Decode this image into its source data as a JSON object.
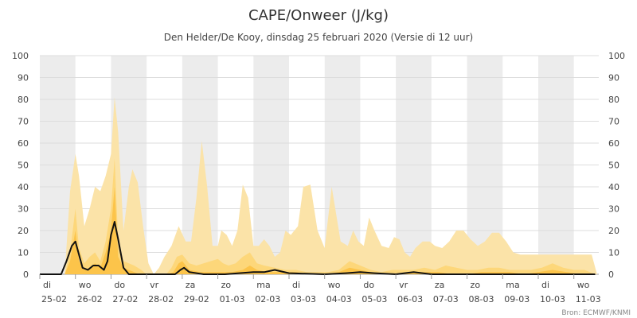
{
  "chart_data": {
    "type": "area",
    "title": "CAPE/Onweer (J/kg)",
    "subtitle": "Den Helder/De Kooy, dinsdag 25 februari 2020 (Versie di 12 uur)",
    "credit": "Bron: ECMWF/KNMI",
    "ylim": [
      0,
      100
    ],
    "yticks": [
      0,
      10,
      20,
      30,
      40,
      50,
      60,
      70,
      80,
      90,
      100
    ],
    "xlim": [
      0,
      15.7
    ],
    "grid": true,
    "x_labels": [
      {
        "day": "di",
        "date": "25-02"
      },
      {
        "day": "wo",
        "date": "26-02"
      },
      {
        "day": "do",
        "date": "27-02"
      },
      {
        "day": "vr",
        "date": "28-02"
      },
      {
        "day": "za",
        "date": "29-02"
      },
      {
        "day": "zo",
        "date": "01-03"
      },
      {
        "day": "ma",
        "date": "02-03"
      },
      {
        "day": "di",
        "date": "03-03"
      },
      {
        "day": "wo",
        "date": "04-03"
      },
      {
        "day": "do",
        "date": "05-03"
      },
      {
        "day": "vr",
        "date": "06-03"
      },
      {
        "day": "za",
        "date": "07-03"
      },
      {
        "day": "zo",
        "date": "08-03"
      },
      {
        "day": "ma",
        "date": "09-03"
      },
      {
        "day": "di",
        "date": "10-03"
      },
      {
        "day": "wo",
        "date": "11-03"
      }
    ],
    "colors": {
      "band_outer": "#fbe3a8",
      "band_mid": "#fdd77a",
      "band_inner": "#fcc44a",
      "line": "#111111",
      "alt_band": "#ececec"
    },
    "series": [
      {
        "role": "band_outer",
        "x": [
          0.7,
          0.85,
          1.0,
          1.1,
          1.25,
          1.4,
          1.55,
          1.7,
          1.85,
          2.0,
          2.1,
          2.2,
          2.35,
          2.5,
          2.6,
          2.75,
          2.9,
          3.05,
          3.2,
          3.35,
          3.5,
          3.7,
          3.9,
          4.1,
          4.25,
          4.4,
          4.55,
          4.7,
          4.85,
          5.0,
          5.1,
          5.25,
          5.4,
          5.55,
          5.7,
          5.85,
          6.0,
          6.15,
          6.3,
          6.45,
          6.6,
          6.75,
          6.9,
          7.05,
          7.25,
          7.4,
          7.6,
          7.8,
          8.0,
          8.2,
          8.45,
          8.65,
          8.8,
          8.95,
          9.1,
          9.25,
          9.4,
          9.6,
          9.8,
          9.95,
          10.1,
          10.25,
          10.4,
          10.55,
          10.75,
          10.95,
          11.1,
          11.3,
          11.5,
          11.7,
          11.9,
          12.1,
          12.3,
          12.5,
          12.7,
          12.9,
          13.1,
          13.3,
          13.5,
          13.7,
          13.9,
          14.1,
          14.3,
          14.5,
          14.7,
          14.9,
          15.1,
          15.3,
          15.5,
          15.65
        ],
        "values": [
          0,
          38,
          55,
          45,
          22,
          30,
          40,
          38,
          45,
          55,
          81,
          65,
          20,
          40,
          48,
          42,
          22,
          5,
          0,
          3,
          8,
          13,
          22,
          15,
          15,
          35,
          61,
          40,
          13,
          13,
          20,
          18,
          13,
          20,
          41,
          35,
          13,
          13,
          16,
          13,
          8,
          10,
          20,
          18,
          22,
          40,
          41,
          20,
          12,
          40,
          15,
          13,
          20,
          15,
          13,
          26,
          20,
          13,
          12,
          17,
          16,
          10,
          8,
          12,
          15,
          15,
          13,
          12,
          15,
          20,
          20,
          16,
          13,
          15,
          19,
          19,
          15,
          10,
          9,
          9,
          9,
          9,
          9,
          9,
          9,
          9,
          9,
          9,
          9,
          0
        ]
      },
      {
        "role": "band_mid",
        "x": [
          0.7,
          0.85,
          1.0,
          1.1,
          1.25,
          1.4,
          1.55,
          1.7,
          1.85,
          2.0,
          2.1,
          2.2,
          2.35,
          2.5,
          2.65,
          2.85,
          3.0,
          3.3,
          3.55,
          3.7,
          3.85,
          4.0,
          4.2,
          4.4,
          4.6,
          4.8,
          5.0,
          5.15,
          5.3,
          5.5,
          5.7,
          5.9,
          6.1,
          6.3,
          6.6,
          6.9,
          7.2,
          7.5,
          7.8,
          8.1,
          8.4,
          8.7,
          9.0,
          9.3,
          9.6,
          9.9,
          10.2,
          10.5,
          10.8,
          11.1,
          11.4,
          11.7,
          12.0,
          12.3,
          12.6,
          12.9,
          13.2,
          13.5,
          13.8,
          14.1,
          14.4,
          14.7,
          15.0,
          15.3,
          15.6
        ],
        "values": [
          0,
          10,
          30,
          12,
          5,
          8,
          10,
          6,
          15,
          30,
          53,
          15,
          6,
          5,
          4,
          2,
          0,
          0,
          0,
          3,
          8,
          9,
          5,
          4,
          5,
          6,
          7,
          5,
          4,
          5,
          8,
          10,
          5,
          4,
          3,
          2,
          2,
          1,
          1,
          1,
          2,
          6,
          4,
          2,
          1,
          2,
          2,
          2,
          3,
          2,
          4,
          3,
          2,
          2,
          3,
          3,
          2,
          2,
          2,
          3,
          5,
          3,
          2,
          2,
          0
        ]
      },
      {
        "role": "band_inner",
        "x": [
          0.7,
          0.85,
          1.0,
          1.1,
          1.25,
          1.4,
          1.55,
          1.7,
          1.85,
          2.0,
          2.1,
          2.2,
          2.35,
          2.5,
          2.65,
          2.8,
          3.0,
          3.3,
          3.6,
          3.75,
          3.9,
          4.0,
          4.2,
          4.5,
          4.8,
          5.1,
          5.4,
          5.7,
          5.9,
          6.1,
          6.4,
          6.8,
          7.2,
          7.6,
          8.0,
          8.4,
          8.7,
          9.0,
          9.3,
          9.6,
          10.0,
          10.4,
          10.8,
          11.2,
          11.6,
          12.0,
          12.4,
          12.8,
          13.2,
          13.6,
          14.0,
          14.4,
          14.8,
          15.2,
          15.6
        ],
        "values": [
          0,
          6,
          20,
          6,
          2,
          3,
          5,
          3,
          10,
          20,
          40,
          8,
          3,
          2,
          1,
          0,
          0,
          0,
          0,
          1,
          5,
          6,
          2,
          1,
          1,
          1,
          1,
          2,
          4,
          2,
          1,
          1,
          1,
          0,
          0,
          1,
          3,
          2,
          1,
          0,
          0,
          1,
          1,
          1,
          0,
          0,
          1,
          1,
          1,
          0,
          1,
          2,
          1,
          0,
          0
        ]
      },
      {
        "role": "line",
        "x": [
          0,
          0.6,
          0.75,
          0.9,
          1.0,
          1.1,
          1.2,
          1.35,
          1.5,
          1.65,
          1.8,
          1.9,
          2.0,
          2.1,
          2.2,
          2.35,
          2.5,
          2.7,
          3.0,
          3.5,
          3.8,
          3.95,
          4.05,
          4.2,
          4.6,
          5.2,
          5.6,
          6.0,
          6.3,
          6.6,
          7.0,
          8.0,
          8.6,
          9.0,
          9.4,
          10.0,
          10.5,
          11.0,
          12.0,
          13.0,
          14.0,
          15.0,
          15.6
        ],
        "values": [
          0,
          0,
          6,
          13,
          15,
          9,
          3,
          2,
          4,
          4,
          2,
          6,
          18,
          24,
          16,
          3,
          0,
          0,
          0,
          0,
          0,
          2,
          3,
          1,
          0,
          0,
          0.5,
          1,
          1,
          2,
          0.5,
          0,
          0.5,
          1,
          0.5,
          0,
          1,
          0,
          0,
          0,
          0,
          0,
          0
        ]
      }
    ]
  }
}
